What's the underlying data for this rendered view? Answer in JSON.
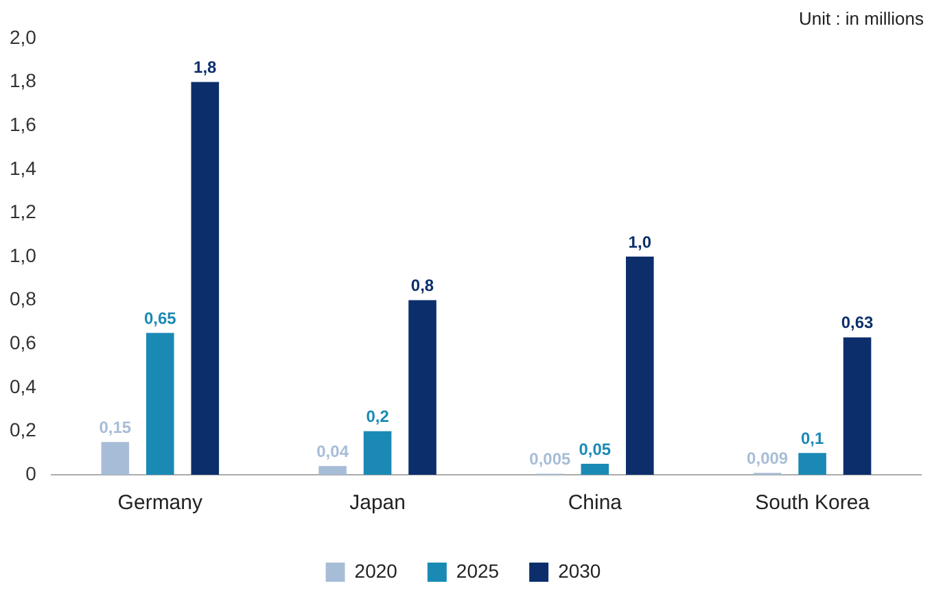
{
  "chart_data": {
    "type": "bar",
    "annotations": [
      "Unit : in millions"
    ],
    "categories": [
      "Germany",
      "Japan",
      "China",
      "South Korea"
    ],
    "series": [
      {
        "name": "2020",
        "color": "#a7bdd7",
        "values": [
          0.15,
          0.04,
          0.005,
          0.009
        ],
        "value_labels": [
          "0,15",
          "0,04",
          "0,005",
          "0,009"
        ]
      },
      {
        "name": "2025",
        "color": "#1a8ab5",
        "values": [
          0.65,
          0.2,
          0.05,
          0.1
        ],
        "value_labels": [
          "0,65",
          "0,2",
          "0,05",
          "0,1"
        ]
      },
      {
        "name": "2030",
        "color": "#0c2f6c",
        "values": [
          1.8,
          0.8,
          1.0,
          0.63
        ],
        "value_labels": [
          "1,8",
          "0,8",
          "1,0",
          "0,63"
        ]
      }
    ],
    "ylim": [
      0,
      2
    ],
    "yticks": [
      0,
      {
        "value": 0.2,
        "label": "0,2"
      },
      {
        "value": 0.4,
        "label": "0,4"
      },
      {
        "value": 0.6,
        "label": "0,6"
      },
      {
        "value": 0.8,
        "label": "0,8"
      },
      {
        "value": 1,
        "label": "1,0"
      },
      {
        "value": 1.2,
        "label": "1,2"
      },
      {
        "value": 1.4,
        "label": "1,4"
      },
      {
        "value": 1.6,
        "label": "1,6"
      },
      {
        "value": 1.8,
        "label": "1,8"
      },
      {
        "value": 2,
        "label": "2,0"
      }
    ],
    "legend": "bottom"
  }
}
